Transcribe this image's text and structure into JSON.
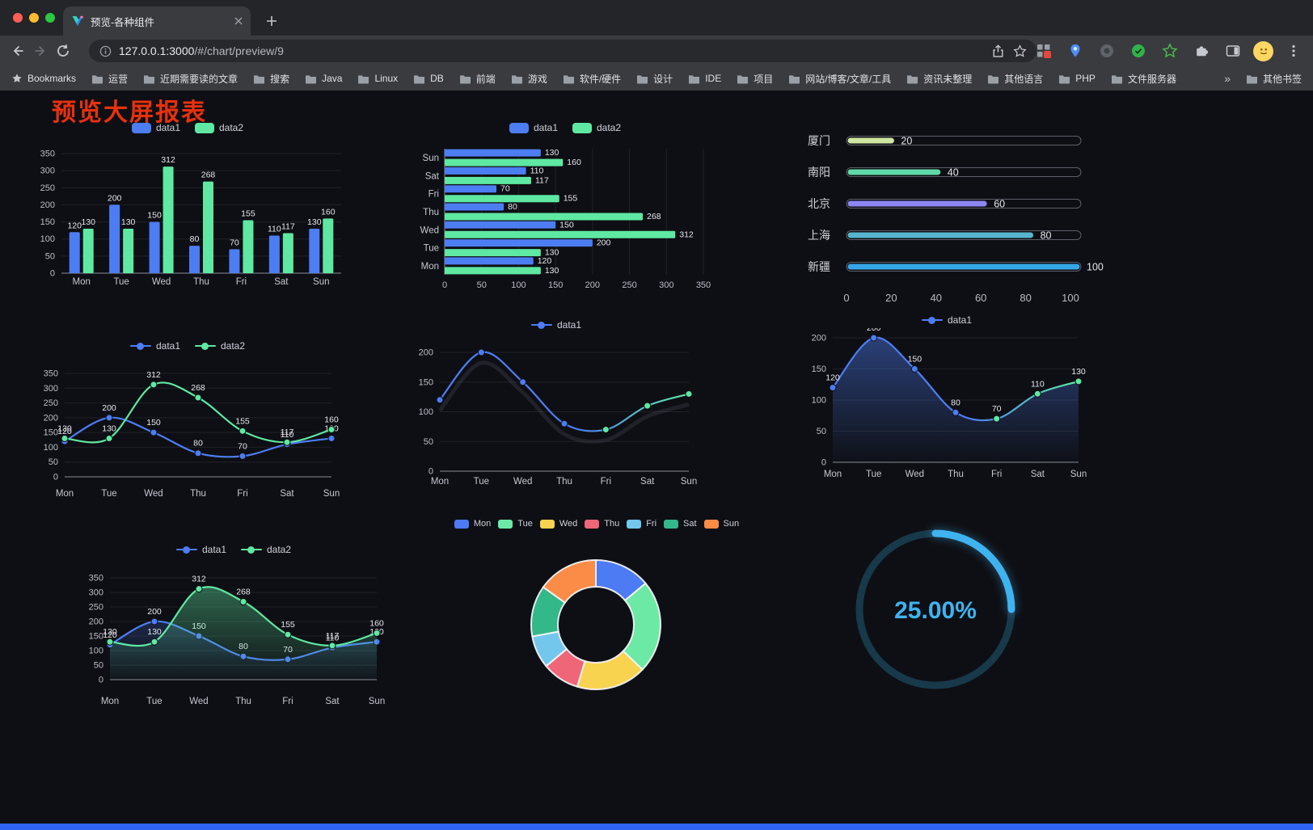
{
  "browser": {
    "tab_title": "预览-各种组件",
    "url": {
      "host": "127.0.0.1:3000",
      "path": "/#/chart/preview/9"
    },
    "bookmarks_bar": {
      "label": "Bookmarks",
      "items": [
        "运营",
        "近期需要读的文章",
        "搜索",
        "Java",
        "Linux",
        "DB",
        "前端",
        "游戏",
        "软件/硬件",
        "设计",
        "IDE",
        "项目",
        "网站/博客/文章/工具",
        "资讯未整理",
        "其他语言",
        "PHP",
        "文件服务器"
      ],
      "overflow": "»",
      "other": "其他书签"
    }
  },
  "page": {
    "title": "预览大屏报表",
    "title_color": "#e7310e",
    "accent_bar_color": "#2e62f0"
  },
  "chart_data": [
    {
      "id": "c1",
      "type": "bar",
      "categories": [
        "Mon",
        "Tue",
        "Wed",
        "Thu",
        "Fri",
        "Sat",
        "Sun"
      ],
      "series": [
        {
          "name": "data1",
          "color": "#4d7df2",
          "values": [
            120,
            200,
            150,
            80,
            70,
            110,
            130
          ]
        },
        {
          "name": "data2",
          "color": "#5fe8a2",
          "values": [
            130,
            130,
            312,
            268,
            155,
            117,
            160
          ]
        }
      ],
      "ylim": [
        0,
        350
      ],
      "ystep": 50,
      "point_labels": true,
      "legend_position": "top"
    },
    {
      "id": "c2",
      "type": "bar-horizontal",
      "categories": [
        "Mon",
        "Tue",
        "Wed",
        "Thu",
        "Fri",
        "Sat",
        "Sun"
      ],
      "series": [
        {
          "name": "data1",
          "color": "#4d7df2",
          "values": [
            120,
            200,
            150,
            80,
            70,
            110,
            130
          ]
        },
        {
          "name": "data2",
          "color": "#5fe8a2",
          "values": [
            130,
            130,
            312,
            268,
            155,
            117,
            160
          ]
        }
      ],
      "xlim": [
        0,
        350
      ],
      "xstep": 50,
      "point_labels": true,
      "legend_position": "top"
    },
    {
      "id": "c3",
      "type": "capsule-bar",
      "max": 100,
      "xticks": [
        0,
        20,
        40,
        60,
        80,
        100
      ],
      "rows": [
        {
          "label": "厦门",
          "value": 20,
          "color": "#cfe6a0"
        },
        {
          "label": "南阳",
          "value": 40,
          "color": "#5fd9a7"
        },
        {
          "label": "北京",
          "value": 60,
          "color": "#8b86f2"
        },
        {
          "label": "上海",
          "value": 80,
          "color": "#57b6ce"
        },
        {
          "label": "新疆",
          "value": 100,
          "color": "#35a6e8"
        }
      ]
    },
    {
      "id": "c4",
      "type": "line",
      "categories": [
        "Mon",
        "Tue",
        "Wed",
        "Thu",
        "Fri",
        "Sat",
        "Sun"
      ],
      "series": [
        {
          "name": "data1",
          "color": "#4d7df2",
          "values": [
            120,
            200,
            150,
            80,
            70,
            110,
            130
          ]
        },
        {
          "name": "data2",
          "color": "#5fe8a2",
          "values": [
            130,
            130,
            312,
            268,
            155,
            117,
            160
          ]
        }
      ],
      "ylim": [
        0,
        350
      ],
      "ystep": 50,
      "point_labels": true,
      "legend_position": "top"
    },
    {
      "id": "c5",
      "type": "line",
      "categories": [
        "Mon",
        "Tue",
        "Wed",
        "Thu",
        "Fri",
        "Sat",
        "Sun"
      ],
      "series": [
        {
          "name": "data1",
          "color": "#4d7df2",
          "values": [
            120,
            200,
            150,
            80,
            70,
            110,
            130
          ]
        }
      ],
      "ylim": [
        0,
        200
      ],
      "ystep": 50,
      "point_labels": false,
      "legend_position": "top",
      "gradient_colors": [
        "#4d7df2",
        "#5fe8a2"
      ]
    },
    {
      "id": "c6",
      "type": "area",
      "categories": [
        "Mon",
        "Tue",
        "Wed",
        "Thu",
        "Fri",
        "Sat",
        "Sun"
      ],
      "series": [
        {
          "name": "data1",
          "color": "#4d7df2",
          "values": [
            120,
            200,
            150,
            80,
            70,
            110,
            130
          ]
        }
      ],
      "ylim": [
        0,
        200
      ],
      "ystep": 50,
      "point_labels": true,
      "legend_position": "top",
      "gradient_colors": [
        "#4d7df2",
        "#5fe8a2"
      ]
    },
    {
      "id": "c7",
      "type": "line-area",
      "categories": [
        "Mon",
        "Tue",
        "Wed",
        "Thu",
        "Fri",
        "Sat",
        "Sun"
      ],
      "series": [
        {
          "name": "data1",
          "color": "#4d7df2",
          "values": [
            120,
            200,
            150,
            80,
            70,
            110,
            130
          ]
        },
        {
          "name": "data2",
          "color": "#5fe8a2",
          "values": [
            130,
            130,
            312,
            268,
            155,
            117,
            160
          ]
        }
      ],
      "ylim": [
        0,
        350
      ],
      "ystep": 50,
      "point_labels": true,
      "legend_position": "top"
    },
    {
      "id": "c8",
      "type": "pie",
      "items": [
        {
          "label": "Mon",
          "value": 120,
          "color": "#4d7bf3"
        },
        {
          "label": "Tue",
          "value": 200,
          "color": "#6de9a6"
        },
        {
          "label": "Wed",
          "value": 150,
          "color": "#f8d34f"
        },
        {
          "label": "Thu",
          "value": 80,
          "color": "#ee6678"
        },
        {
          "label": "Fri",
          "value": 70,
          "color": "#74c7ec"
        },
        {
          "label": "Sat",
          "value": 110,
          "color": "#33b88a"
        },
        {
          "label": "Sun",
          "value": 130,
          "color": "#fa8c47"
        }
      ],
      "legend_position": "top"
    },
    {
      "id": "c9",
      "type": "gauge",
      "label": "25.00%",
      "percent": 25,
      "color": "#3fb3ef",
      "track_color": "#17394a"
    }
  ]
}
